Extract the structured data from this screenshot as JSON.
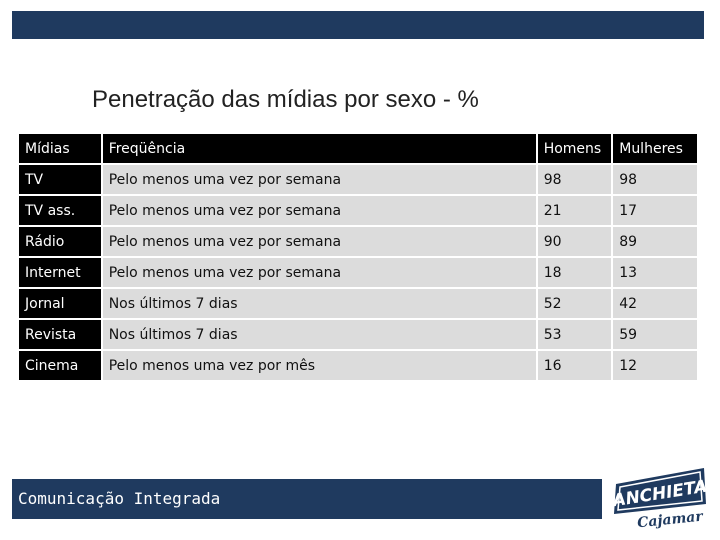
{
  "title": "Penetração das mídias por sexo - %",
  "table": {
    "headers": [
      "Mídias",
      "Freqüência",
      "Homens",
      "Mulheres"
    ],
    "rows": [
      [
        "TV",
        "Pelo menos uma vez por semana",
        "98",
        "98"
      ],
      [
        "TV ass.",
        "Pelo menos uma vez por semana",
        "21",
        "17"
      ],
      [
        "Rádio",
        "Pelo menos uma vez por semana",
        "90",
        "89"
      ],
      [
        "Internet",
        "Pelo menos uma vez por semana",
        "18",
        "13"
      ],
      [
        "Jornal",
        "Nos últimos 7 dias",
        "52",
        "42"
      ],
      [
        "Revista",
        "Nos últimos 7 dias",
        "53",
        "59"
      ],
      [
        "Cinema",
        "Pelo menos uma vez por mês",
        "16",
        "12"
      ]
    ]
  },
  "footer": {
    "text": "Comunicação Integrada"
  },
  "logo": {
    "name": "ANCHIETA",
    "sub": "Cajamar"
  },
  "colors": {
    "accent": "#1f3a5f",
    "header_bg": "#000000",
    "cell_bg": "#dcdcdc"
  }
}
